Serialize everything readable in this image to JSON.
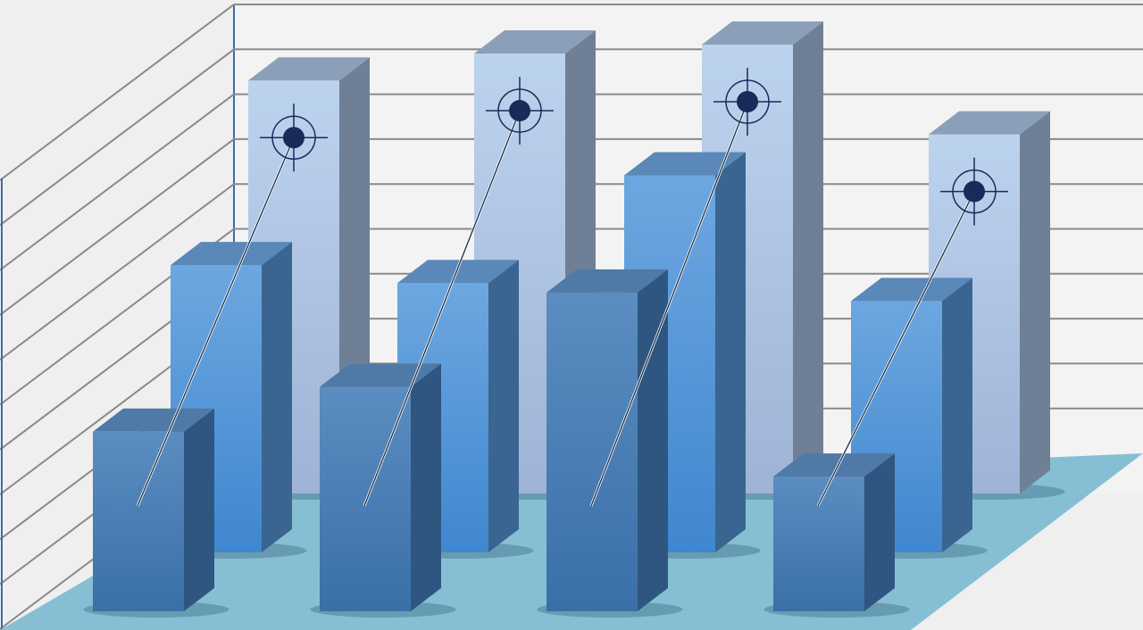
{
  "chart_data": {
    "type": "bar",
    "style": "3d-clustered",
    "title": "",
    "xlabel": "",
    "ylabel": "",
    "grid": true,
    "ylim": [
      0,
      11
    ],
    "categories": [
      "",
      "",
      "",
      ""
    ],
    "series": [
      {
        "values": [
          9.2,
          9.8,
          10.0,
          8.0
        ],
        "color": "#b4cdea",
        "row": "back",
        "marker": "crosshair-target"
      },
      {
        "values": [
          6.4,
          6.0,
          8.4,
          5.6
        ],
        "color": "#5b9bd9",
        "row": "middle"
      },
      {
        "values": [
          4.0,
          5.0,
          7.1,
          3.0
        ],
        "color": "#4a7fb5",
        "row": "front"
      }
    ],
    "colors": {
      "wall": "#efefef",
      "grid": "#8a8a8a",
      "floor": "#86bfd4",
      "target": "#1a2a5a"
    }
  }
}
